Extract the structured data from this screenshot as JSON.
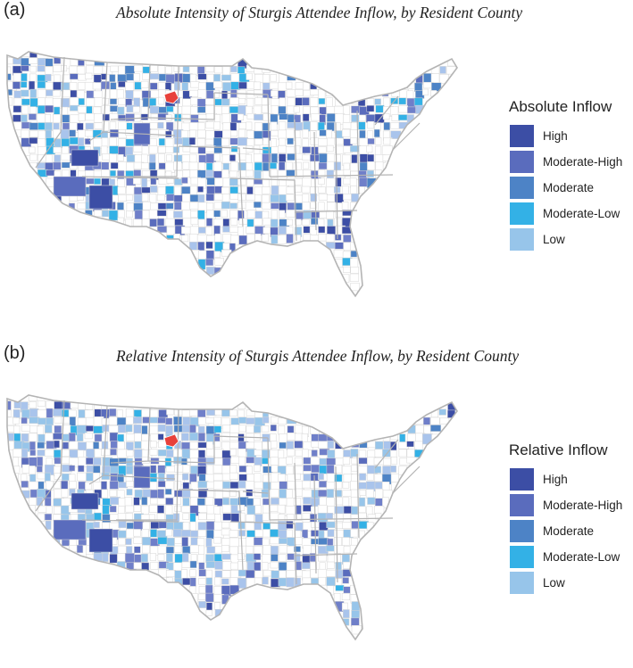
{
  "panels": [
    {
      "letter": "(a)",
      "title": "Absolute Intensity of Sturgis Attendee Inflow, by Resident County",
      "legend": {
        "title": "Absolute Inflow",
        "items": [
          {
            "label": "High",
            "color": "#3c4ea5"
          },
          {
            "label": "Moderate-High",
            "color": "#5a6cbd"
          },
          {
            "label": "Moderate",
            "color": "#4d83c6"
          },
          {
            "label": "Moderate-Low",
            "color": "#33b1e6"
          },
          {
            "label": "Low",
            "color": "#97c5ea"
          }
        ]
      }
    },
    {
      "letter": "(b)",
      "title": "Relative Intensity of Sturgis Attendee Inflow, by Resident County",
      "legend": {
        "title": "Relative Inflow",
        "items": [
          {
            "label": "High",
            "color": "#3c4ea5"
          },
          {
            "label": "Moderate-High",
            "color": "#5a6cbd"
          },
          {
            "label": "Moderate",
            "color": "#4d83c6"
          },
          {
            "label": "Moderate-Low",
            "color": "#33b1e6"
          },
          {
            "label": "Low",
            "color": "#97c5ea"
          }
        ]
      }
    }
  ],
  "colors": {
    "sturgis_county": "#e8413a",
    "state_border": "#b4b4b4",
    "county_border": "#d6d6d6",
    "no_data": "#ffffff"
  }
}
